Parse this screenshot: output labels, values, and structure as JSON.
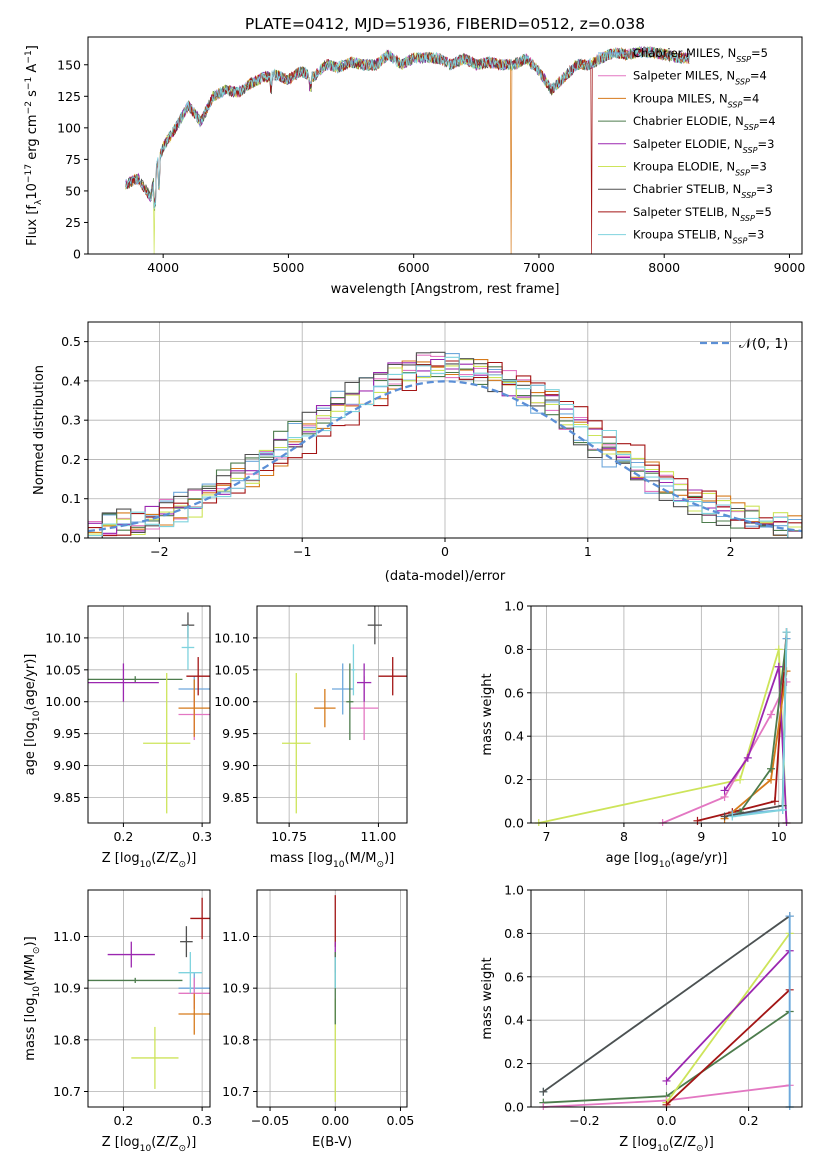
{
  "colors": {
    "c_miles": "#6fa8dc",
    "s_miles": "#e377c2",
    "k_miles": "#d67a1b",
    "c_elodie": "#4d7c4d",
    "s_elodie": "#9b27b0",
    "k_elodie": "#cde45a",
    "c_stelib": "#505050",
    "s_stelib": "#a31515",
    "k_stelib": "#7fd3de",
    "normal": "#5b8fd6"
  },
  "chart_data": [
    {
      "id": "spectrum",
      "type": "line",
      "title": "PLATE=0412, MJD=51936, FIBERID=0512, z=0.038",
      "xlabel": "wavelength [Angstrom, rest frame]",
      "ylabel": "Flux [fλ10⁻¹⁷ erg cm⁻² s⁻¹ A⁻¹]",
      "xlim": [
        3400,
        9100
      ],
      "ylim": [
        0,
        172
      ],
      "xticks": [
        4000,
        5000,
        6000,
        7000,
        8000,
        9000
      ],
      "yticks": [
        0,
        25,
        50,
        75,
        100,
        125,
        150
      ],
      "grid": false,
      "legend": "top-right",
      "legend_entries": [
        "Chabrier MILES, NSSP=5",
        "Salpeter MILES, NSSP=4",
        "Kroupa MILES, NSSP=4",
        "Chabrier ELODIE, NSSP=4",
        "Salpeter ELODIE, NSSP=3",
        "Kroupa ELODIE, NSSP=3",
        "Chabrier STELIB, NSSP=3",
        "Salpeter STELIB, NSSP=5",
        "Kroupa STELIB, NSSP=3"
      ],
      "series_colors": [
        "c_miles",
        "s_miles",
        "k_miles",
        "c_elodie",
        "s_elodie",
        "k_elodie",
        "c_stelib",
        "s_stelib",
        "k_stelib"
      ],
      "x": [
        3700,
        3800,
        3900,
        3950,
        4000,
        4100,
        4200,
        4300,
        4400,
        4500,
        4600,
        4700,
        4800,
        4900,
        5000,
        5100,
        5200,
        5300,
        5400,
        5500,
        5600,
        5700,
        5800,
        5900,
        6000,
        6100,
        6200,
        6300,
        6400,
        6500,
        6600,
        6700,
        6800,
        6900,
        7000,
        7100,
        7200,
        7300,
        7400,
        7500,
        7600,
        7700,
        7800,
        7900,
        8000,
        8100,
        8200
      ],
      "y": [
        55,
        60,
        45,
        70,
        85,
        100,
        118,
        105,
        125,
        130,
        128,
        135,
        140,
        142,
        138,
        145,
        140,
        150,
        148,
        152,
        150,
        150,
        158,
        150,
        155,
        156,
        155,
        150,
        155,
        150,
        152,
        150,
        150,
        155,
        145,
        130,
        140,
        150,
        150,
        155,
        160,
        158,
        160,
        160,
        158,
        156,
        155
      ],
      "drop_x": [
        3930,
        6780,
        7420
      ],
      "drop_series": [
        "k_elodie",
        "k_miles",
        "s_stelib"
      ]
    },
    {
      "id": "residuals",
      "type": "line",
      "xlabel": "(data-model)/error",
      "ylabel": "Normed distribution",
      "xlim": [
        -2.5,
        2.5
      ],
      "ylim": [
        0,
        0.55
      ],
      "xticks": [
        -2,
        -1,
        0,
        1,
        2
      ],
      "yticks": [
        0.0,
        0.1,
        0.2,
        0.3,
        0.4,
        0.5
      ],
      "grid": true,
      "legend": "top-right",
      "legend_entries": [
        "N(0,1)"
      ],
      "hist_bin_width": 0.1
    },
    {
      "id": "age_vs_Z",
      "type": "scatter",
      "xlabel": "Z [log10(Z/Z⊙)]",
      "ylabel": "age  [log10(age/yr)]",
      "xlim": [
        0.155,
        0.31
      ],
      "ylim": [
        9.81,
        10.15
      ],
      "xticks": [
        0.2,
        0.3
      ],
      "yticks": [
        9.85,
        9.9,
        9.95,
        10.0,
        10.05,
        10.1
      ],
      "grid": true,
      "points": [
        {
          "s": "c_miles",
          "x": 0.29,
          "y": 10.02,
          "ex": 0.02,
          "ey": 0.02
        },
        {
          "s": "s_miles",
          "x": 0.29,
          "y": 9.98,
          "ex": 0.02,
          "ey": 0.04
        },
        {
          "s": "k_miles",
          "x": 0.29,
          "y": 9.99,
          "ex": 0.02,
          "ey": 0.045
        },
        {
          "s": "c_elodie",
          "x": 0.215,
          "y": 10.035,
          "ex": 0.06,
          "ey": 0.005
        },
        {
          "s": "s_elodie",
          "x": 0.2,
          "y": 10.03,
          "ex": 0.045,
          "ey": 0.03
        },
        {
          "s": "k_elodie",
          "x": 0.255,
          "y": 9.935,
          "ex": 0.03,
          "ey": 0.11
        },
        {
          "s": "c_stelib",
          "x": 0.282,
          "y": 10.12,
          "ex": 0.008,
          "ey": 0.02
        },
        {
          "s": "s_stelib",
          "x": 0.295,
          "y": 10.04,
          "ex": 0.015,
          "ey": 0.03
        },
        {
          "s": "k_stelib",
          "x": 0.282,
          "y": 10.085,
          "ex": 0.008,
          "ey": 0.035
        }
      ]
    },
    {
      "id": "age_vs_mass",
      "type": "scatter",
      "xlabel": "mass [log10(M/M⊙)]",
      "ylabel": "",
      "xlim": [
        10.66,
        11.08
      ],
      "ylim": [
        9.81,
        10.15
      ],
      "xticks": [
        10.75,
        11.0
      ],
      "yticks": [
        9.85,
        9.9,
        9.95,
        10.0,
        10.05,
        10.1
      ],
      "grid": true,
      "points": [
        {
          "s": "c_miles",
          "x": 10.9,
          "y": 10.02,
          "ex": 0.03,
          "ey": 0.04
        },
        {
          "s": "s_miles",
          "x": 10.96,
          "y": 9.99,
          "ex": 0.04,
          "ey": 0.05
        },
        {
          "s": "k_miles",
          "x": 10.85,
          "y": 9.99,
          "ex": 0.03,
          "ey": 0.03
        },
        {
          "s": "c_elodie",
          "x": 10.92,
          "y": 10.0,
          "ex": 0.01,
          "ey": 0.06
        },
        {
          "s": "s_elodie",
          "x": 10.96,
          "y": 10.03,
          "ex": 0.02,
          "ey": 0.03
        },
        {
          "s": "k_elodie",
          "x": 10.77,
          "y": 9.935,
          "ex": 0.04,
          "ey": 0.11
        },
        {
          "s": "c_stelib",
          "x": 10.99,
          "y": 10.12,
          "ex": 0.02,
          "ey": 0.03
        },
        {
          "s": "s_stelib",
          "x": 11.04,
          "y": 10.04,
          "ex": 0.04,
          "ey": 0.03
        },
        {
          "s": "k_stelib",
          "x": 10.93,
          "y": 10.05,
          "ex": 0.005,
          "ey": 0.04
        }
      ]
    },
    {
      "id": "weight_vs_age",
      "type": "line",
      "xlabel": "age  [log10(age/yr)]",
      "ylabel": "mass weight",
      "xlim": [
        6.8,
        10.3
      ],
      "ylim": [
        0,
        1
      ],
      "xticks": [
        7,
        8,
        9,
        10
      ],
      "yticks": [
        0.0,
        0.2,
        0.4,
        0.6,
        0.8,
        1.0
      ],
      "grid": true,
      "series": [
        {
          "s": "k_elodie",
          "x": [
            6.9,
            9.5,
            10.0,
            10.1
          ],
          "y": [
            0,
            0.2,
            0.8,
            0.0
          ]
        },
        {
          "s": "s_miles",
          "x": [
            8.5,
            9.3,
            9.9,
            10.1
          ],
          "y": [
            0,
            0.12,
            0.5,
            0.65
          ]
        },
        {
          "s": "s_stelib",
          "x": [
            8.95,
            9.4,
            9.95,
            10.1
          ],
          "y": [
            0.01,
            0.05,
            0.1,
            0.88
          ]
        },
        {
          "s": "s_elodie",
          "x": [
            9.3,
            9.6,
            10.0,
            10.1
          ],
          "y": [
            0.15,
            0.3,
            0.72,
            0.0
          ]
        },
        {
          "s": "k_miles",
          "x": [
            9.3,
            9.9,
            10.1
          ],
          "y": [
            0.02,
            0.2,
            0.7
          ]
        },
        {
          "s": "c_elodie",
          "x": [
            9.5,
            9.9,
            10.1
          ],
          "y": [
            0.05,
            0.25,
            0.85
          ]
        },
        {
          "s": "c_miles",
          "x": [
            9.4,
            10.05,
            10.1
          ],
          "y": [
            0.04,
            0.06,
            0.85
          ]
        },
        {
          "s": "c_stelib",
          "x": [
            9.3,
            10.05,
            10.1
          ],
          "y": [
            0.03,
            0.08,
            0.88
          ]
        },
        {
          "s": "k_stelib",
          "x": [
            9.4,
            10.05,
            10.1
          ],
          "y": [
            0.03,
            0.06,
            0.88
          ]
        }
      ]
    },
    {
      "id": "mass_vs_Z",
      "type": "scatter",
      "xlabel": "Z [log10(Z/Z⊙)]",
      "ylabel": "mass [log10(M/M⊙)]",
      "xlim": [
        0.155,
        0.31
      ],
      "ylim": [
        10.67,
        11.09
      ],
      "xticks": [
        0.2,
        0.3
      ],
      "yticks": [
        10.7,
        10.8,
        10.9,
        11.0
      ],
      "grid": true,
      "points": [
        {
          "s": "c_miles",
          "x": 0.29,
          "y": 10.9,
          "ex": 0.02,
          "ey": 0.03
        },
        {
          "s": "s_miles",
          "x": 0.29,
          "y": 10.89,
          "ex": 0.02,
          "ey": 0.03
        },
        {
          "s": "k_miles",
          "x": 0.29,
          "y": 10.85,
          "ex": 0.02,
          "ey": 0.04
        },
        {
          "s": "c_elodie",
          "x": 0.215,
          "y": 10.915,
          "ex": 0.06,
          "ey": 0.005
        },
        {
          "s": "s_elodie",
          "x": 0.21,
          "y": 10.965,
          "ex": 0.03,
          "ey": 0.025
        },
        {
          "s": "k_elodie",
          "x": 0.24,
          "y": 10.765,
          "ex": 0.03,
          "ey": 0.06
        },
        {
          "s": "c_stelib",
          "x": 0.28,
          "y": 10.99,
          "ex": 0.008,
          "ey": 0.03
        },
        {
          "s": "s_stelib",
          "x": 0.3,
          "y": 11.035,
          "ex": 0.015,
          "ey": 0.04
        },
        {
          "s": "k_stelib",
          "x": 0.285,
          "y": 10.93,
          "ex": 0.015,
          "ey": 0.04
        }
      ]
    },
    {
      "id": "mass_vs_ebv",
      "type": "scatter",
      "xlabel": "E(B-V)",
      "ylabel": "",
      "xlim": [
        -0.06,
        0.055
      ],
      "ylim": [
        10.67,
        11.09
      ],
      "xticks": [
        -0.05,
        0.0,
        0.05
      ],
      "yticks": [
        10.7,
        10.8,
        10.9,
        11.0
      ],
      "grid": true,
      "points": [
        {
          "s": "k_elodie",
          "x": 0,
          "y": 10.78,
          "ex": 0,
          "ey": 0.1
        },
        {
          "s": "s_stelib",
          "x": 0,
          "y": 11.03,
          "ex": 0,
          "ey": 0.05
        },
        {
          "s": "s_elodie",
          "x": 0,
          "y": 10.96,
          "ex": 0,
          "ey": 0.03
        },
        {
          "s": "c_elodie",
          "x": 0,
          "y": 10.9,
          "ex": 0,
          "ey": 0.07
        },
        {
          "s": "k_stelib",
          "x": 0,
          "y": 10.93,
          "ex": 0,
          "ey": 0.03
        }
      ]
    },
    {
      "id": "weight_vs_Z",
      "type": "line",
      "xlabel": "Z [log10(Z/Z⊙)]",
      "ylabel": "mass weight",
      "xlim": [
        -0.33,
        0.33
      ],
      "ylim": [
        0,
        1
      ],
      "xticks": [
        -0.2,
        0.0,
        0.2
      ],
      "yticks": [
        0.0,
        0.2,
        0.4,
        0.6,
        0.8,
        1.0
      ],
      "grid": true,
      "series": [
        {
          "s": "k_stelib",
          "x": [
            -0.3,
            0.3,
            0.3
          ],
          "y": [
            0.07,
            0.88,
            0.0
          ]
        },
        {
          "s": "c_stelib",
          "x": [
            -0.3,
            0.3
          ],
          "y": [
            0.07,
            0.88
          ]
        },
        {
          "s": "c_elodie",
          "x": [
            -0.3,
            0.0,
            0.3
          ],
          "y": [
            0.02,
            0.05,
            0.44
          ]
        },
        {
          "s": "s_miles",
          "x": [
            -0.3,
            0.0,
            0.3
          ],
          "y": [
            0.0,
            0.03,
            0.1
          ]
        },
        {
          "s": "k_elodie",
          "x": [
            0.0,
            0.3
          ],
          "y": [
            0.02,
            0.8
          ]
        },
        {
          "s": "s_elodie",
          "x": [
            0.0,
            0.3
          ],
          "y": [
            0.12,
            0.72
          ]
        },
        {
          "s": "s_stelib",
          "x": [
            0.0,
            0.3
          ],
          "y": [
            0.01,
            0.54
          ]
        },
        {
          "s": "c_miles",
          "x": [
            0.3,
            0.3
          ],
          "y": [
            0.0,
            0.88
          ]
        }
      ]
    }
  ]
}
